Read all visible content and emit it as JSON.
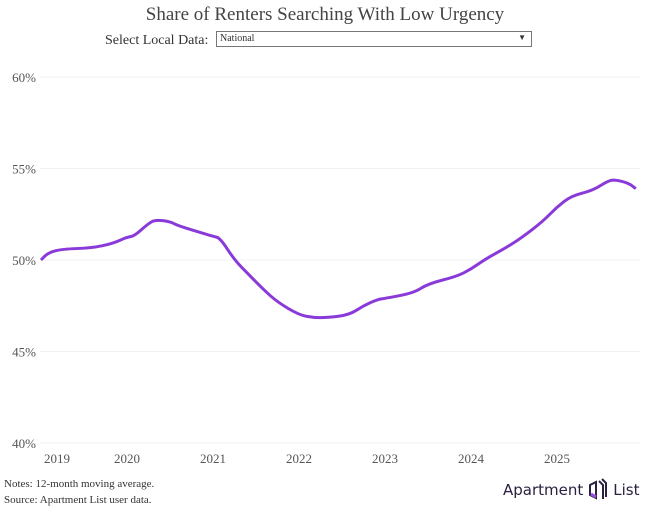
{
  "title": "Share of Renters Searching With Low Urgency",
  "filter": {
    "label": "Select Local Data:",
    "selected": "National"
  },
  "notes": "Notes: 12-month moving average.",
  "source": "Source: Apartment List user data.",
  "logo": {
    "left": "Apartment",
    "right": "List",
    "icon": "apartment-list-logo-icon"
  },
  "colors": {
    "line": "#8a3ad8",
    "grid": "#f0f0f0"
  },
  "chart_data": {
    "type": "line",
    "title": "Share of Renters Searching With Low Urgency",
    "xlabel": "",
    "ylabel": "",
    "ylim": [
      40,
      60
    ],
    "yticks": [
      "40%",
      "45%",
      "50%",
      "55%",
      "60%"
    ],
    "ytick_values": [
      40,
      45,
      50,
      55,
      60
    ],
    "xticks": [
      "2019",
      "2020",
      "2021",
      "2022",
      "2023",
      "2024",
      "2025"
    ],
    "xlim": [
      "2019-01",
      "2026-01"
    ],
    "grid": "horizontal",
    "x": [
      "2019-01",
      "2019-02",
      "2019-04",
      "2019-08",
      "2019-11",
      "2020-01",
      "2020-02",
      "2020-04",
      "2020-05",
      "2020-07",
      "2020-08",
      "2020-10",
      "2021-01",
      "2021-02",
      "2021-04",
      "2021-06",
      "2021-08",
      "2021-10",
      "2022-01",
      "2022-03",
      "2022-05",
      "2022-08",
      "2022-10",
      "2022-12",
      "2023-01",
      "2023-05",
      "2023-07",
      "2023-11",
      "2024-01",
      "2024-03",
      "2024-06",
      "2024-08",
      "2024-11",
      "2025-01",
      "2025-03",
      "2025-06",
      "2025-08",
      "2025-09",
      "2025-11",
      "2025-12"
    ],
    "values": [
      50.0,
      50.4,
      50.6,
      50.65,
      50.9,
      51.25,
      51.3,
      52.0,
      52.2,
      52.1,
      51.9,
      51.65,
      51.3,
      51.2,
      50.0,
      49.2,
      48.4,
      47.7,
      47.0,
      46.85,
      46.85,
      47.0,
      47.5,
      47.85,
      47.9,
      48.2,
      48.7,
      49.1,
      49.5,
      50.05,
      50.7,
      51.2,
      52.1,
      52.9,
      53.5,
      53.8,
      54.3,
      54.4,
      54.2,
      53.9
    ]
  }
}
